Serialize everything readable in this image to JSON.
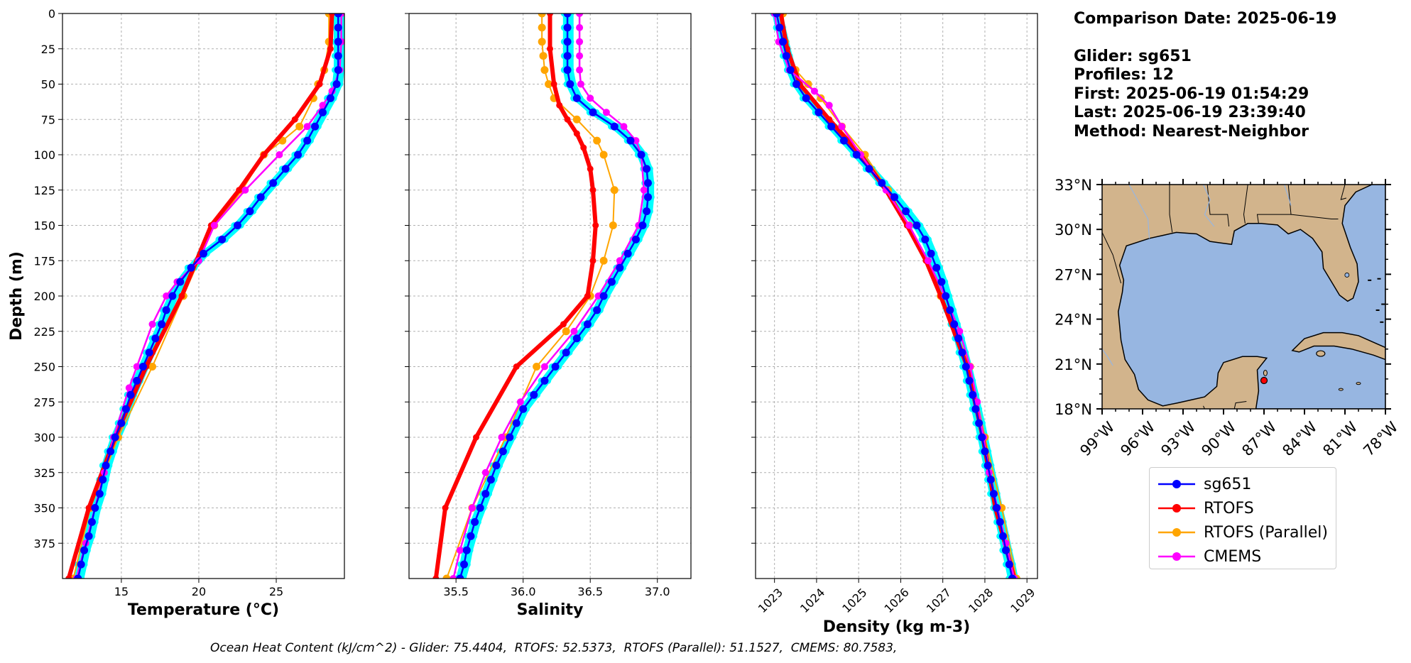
{
  "info": {
    "comparison_date": "Comparison Date: 2025-06-19",
    "glider": "Glider: sg651",
    "profiles": "Profiles: 12",
    "first": "First: 2025-06-19 01:54:29",
    "last": "Last: 2025-06-19 23:39:40",
    "method": "Method: Nearest-Neighbor"
  },
  "footer": "Ocean Heat Content (kJ/cm^2) - Glider: 75.4404,  RTOFS: 52.5373,  RTOFS (Parallel): 51.1527,  CMEMS: 80.7583,",
  "legend": [
    {
      "name": "sg651",
      "color": "#0000ff"
    },
    {
      "name": "RTOFS",
      "color": "#ff0000"
    },
    {
      "name": "RTOFS (Parallel)",
      "color": "#ffa500"
    },
    {
      "name": "CMEMS",
      "color": "#ff00ff"
    }
  ],
  "colors": {
    "glider_band": "#00ffff",
    "ocean": "#97b6e1",
    "land": "#d2b48c",
    "grid": "#b0b0b0"
  },
  "chart_data": [
    {
      "type": "line",
      "xlabel": "Temperature (°C)",
      "ylabel": "Depth (m)",
      "xlim": [
        11.2,
        29.4
      ],
      "ylim": [
        400,
        0
      ],
      "xticks": [
        15,
        20,
        25
      ],
      "yticks": [
        0,
        25,
        50,
        75,
        100,
        125,
        150,
        175,
        200,
        225,
        250,
        275,
        300,
        325,
        350,
        375
      ],
      "grid": true,
      "series": [
        {
          "name": "sg651",
          "depth": [
            0,
            10,
            20,
            30,
            40,
            50,
            60,
            70,
            80,
            90,
            100,
            110,
            120,
            130,
            140,
            150,
            160,
            170,
            180,
            190,
            200,
            210,
            220,
            230,
            240,
            250,
            260,
            270,
            280,
            290,
            300,
            310,
            320,
            330,
            340,
            350,
            360,
            370,
            380,
            390,
            400
          ],
          "values": [
            29.0,
            29.0,
            29.0,
            29.0,
            29.0,
            28.9,
            28.5,
            28.0,
            27.5,
            27.0,
            26.4,
            25.6,
            24.8,
            24.0,
            23.3,
            22.5,
            21.5,
            20.3,
            19.5,
            18.8,
            18.3,
            17.9,
            17.6,
            17.2,
            16.8,
            16.4,
            16.0,
            15.6,
            15.3,
            15.0,
            14.6,
            14.3,
            14.0,
            13.8,
            13.6,
            13.3,
            13.1,
            12.9,
            12.6,
            12.4,
            12.2
          ]
        },
        {
          "name": "RTOFS",
          "depth": [
            0,
            25,
            50,
            75,
            100,
            125,
            150,
            200,
            250,
            300,
            350,
            400
          ],
          "values": [
            28.6,
            28.5,
            27.8,
            26.2,
            24.2,
            22.6,
            20.8,
            18.9,
            16.6,
            14.6,
            12.9,
            11.6
          ]
        },
        {
          "name": "RTOFS (Parallel)",
          "depth": [
            0,
            20,
            40,
            50,
            60,
            80,
            90,
            100,
            125,
            150,
            200,
            250,
            300,
            350,
            400
          ],
          "values": [
            28.4,
            28.4,
            28.1,
            27.7,
            27.4,
            26.5,
            25.4,
            24.2,
            22.8,
            21.0,
            19.0,
            17.0,
            14.8,
            13.0,
            11.9
          ]
        },
        {
          "name": "CMEMS",
          "depth": [
            0,
            20,
            40,
            55,
            65,
            80,
            100,
            125,
            150,
            175,
            190,
            200,
            220,
            250,
            265,
            300,
            325,
            350,
            375,
            400
          ],
          "values": [
            29.2,
            29.2,
            29.1,
            28.6,
            28.0,
            27.0,
            25.2,
            23.0,
            21.0,
            20.0,
            18.6,
            17.9,
            17.0,
            16.0,
            15.5,
            14.5,
            13.9,
            13.3,
            12.7,
            12.1
          ]
        }
      ]
    },
    {
      "type": "line",
      "xlabel": "Salinity",
      "xlim": [
        35.15,
        37.25
      ],
      "ylim": [
        400,
        0
      ],
      "xticks": [
        35.5,
        36.0,
        36.5,
        37.0
      ],
      "grid": true,
      "series": [
        {
          "name": "sg651",
          "depth": [
            0,
            10,
            20,
            30,
            40,
            50,
            60,
            70,
            80,
            90,
            100,
            110,
            120,
            130,
            140,
            150,
            160,
            170,
            180,
            190,
            200,
            210,
            220,
            230,
            240,
            250,
            260,
            270,
            280,
            290,
            300,
            310,
            320,
            330,
            340,
            350,
            360,
            370,
            380,
            390,
            400
          ],
          "values": [
            36.33,
            36.33,
            36.33,
            36.33,
            36.33,
            36.35,
            36.4,
            36.52,
            36.68,
            36.8,
            36.88,
            36.92,
            36.93,
            36.93,
            36.92,
            36.89,
            36.84,
            36.78,
            36.72,
            36.66,
            36.6,
            36.55,
            36.48,
            36.4,
            36.32,
            36.24,
            36.16,
            36.08,
            36.0,
            35.95,
            35.9,
            35.85,
            35.8,
            35.76,
            35.72,
            35.68,
            35.64,
            35.61,
            35.58,
            35.56,
            35.53
          ]
        },
        {
          "name": "RTOFS",
          "depth": [
            0,
            25,
            50,
            65,
            75,
            85,
            95,
            110,
            125,
            150,
            175,
            200,
            220,
            250,
            300,
            350,
            400
          ],
          "values": [
            36.2,
            36.2,
            36.23,
            36.27,
            36.33,
            36.4,
            36.45,
            36.5,
            36.52,
            36.54,
            36.52,
            36.48,
            36.3,
            35.95,
            35.65,
            35.42,
            35.35
          ]
        },
        {
          "name": "RTOFS (Parallel)",
          "depth": [
            0,
            10,
            20,
            30,
            40,
            50,
            60,
            75,
            90,
            100,
            125,
            150,
            175,
            200,
            225,
            250,
            300,
            350,
            400
          ],
          "values": [
            36.14,
            36.14,
            36.14,
            36.15,
            36.16,
            36.19,
            36.23,
            36.4,
            36.55,
            36.6,
            36.68,
            36.67,
            36.6,
            36.5,
            36.32,
            36.1,
            35.87,
            35.62,
            35.43
          ]
        },
        {
          "name": "CMEMS",
          "depth": [
            0,
            10,
            20,
            30,
            40,
            50,
            60,
            70,
            80,
            90,
            100,
            125,
            150,
            175,
            200,
            225,
            250,
            275,
            300,
            325,
            350,
            380,
            400
          ],
          "values": [
            36.42,
            36.42,
            36.42,
            36.42,
            36.42,
            36.43,
            36.5,
            36.62,
            36.75,
            36.84,
            36.88,
            36.9,
            36.86,
            36.72,
            36.56,
            36.38,
            36.16,
            35.98,
            35.84,
            35.72,
            35.62,
            35.53,
            35.48
          ]
        }
      ]
    },
    {
      "type": "line",
      "xlabel": "Density (kg m-3)",
      "xlim": [
        1022.55,
        1029.25
      ],
      "ylim": [
        400,
        0
      ],
      "xticks": [
        1023,
        1024,
        1025,
        1026,
        1027,
        1028,
        1029
      ],
      "grid": true,
      "series": [
        {
          "name": "sg651",
          "depth": [
            0,
            10,
            20,
            30,
            40,
            50,
            60,
            70,
            80,
            90,
            100,
            110,
            120,
            130,
            140,
            150,
            160,
            170,
            180,
            190,
            200,
            210,
            220,
            230,
            240,
            250,
            260,
            270,
            280,
            290,
            300,
            310,
            320,
            330,
            340,
            350,
            360,
            370,
            380,
            390,
            400
          ],
          "values": [
            1023.05,
            1023.12,
            1023.2,
            1023.28,
            1023.38,
            1023.52,
            1023.75,
            1024.05,
            1024.35,
            1024.65,
            1024.95,
            1025.25,
            1025.55,
            1025.85,
            1026.12,
            1026.38,
            1026.58,
            1026.72,
            1026.85,
            1026.97,
            1027.07,
            1027.17,
            1027.27,
            1027.37,
            1027.46,
            1027.55,
            1027.63,
            1027.71,
            1027.78,
            1027.86,
            1027.93,
            1028.0,
            1028.07,
            1028.14,
            1028.21,
            1028.28,
            1028.36,
            1028.43,
            1028.5,
            1028.58,
            1028.65
          ]
        },
        {
          "name": "RTOFS",
          "depth": [
            0,
            25,
            50,
            75,
            100,
            125,
            150,
            175,
            200,
            250,
            300,
            350,
            400
          ],
          "values": [
            1023.15,
            1023.3,
            1023.6,
            1024.3,
            1025.05,
            1025.65,
            1026.15,
            1026.6,
            1026.95,
            1027.58,
            1027.95,
            1028.25,
            1028.7
          ]
        },
        {
          "name": "RTOFS (Parallel)",
          "depth": [
            0,
            20,
            40,
            50,
            60,
            80,
            100,
            125,
            150,
            200,
            250,
            300,
            350,
            400
          ],
          "values": [
            1023.2,
            1023.25,
            1023.5,
            1023.8,
            1024.1,
            1024.6,
            1025.15,
            1025.7,
            1026.2,
            1026.95,
            1027.65,
            1028.0,
            1028.4,
            1028.75
          ]
        },
        {
          "name": "CMEMS",
          "depth": [
            0,
            20,
            40,
            55,
            65,
            80,
            100,
            125,
            150,
            175,
            200,
            225,
            250,
            275,
            300,
            325,
            350,
            375,
            400
          ],
          "values": [
            1023.0,
            1023.1,
            1023.35,
            1023.95,
            1024.3,
            1024.6,
            1025.05,
            1025.65,
            1026.2,
            1026.65,
            1027.05,
            1027.4,
            1027.65,
            1027.82,
            1027.97,
            1028.1,
            1028.3,
            1028.5,
            1028.7
          ]
        }
      ]
    }
  ],
  "map": {
    "lat_ticks": [
      "33°N",
      "30°N",
      "27°N",
      "24°N",
      "21°N",
      "18°N"
    ],
    "lon_ticks": [
      "99°W",
      "96°W",
      "93°W",
      "90°W",
      "87°W",
      "84°W",
      "81°W",
      "78°W"
    ],
    "lat_values": [
      33,
      30,
      27,
      24,
      21,
      18
    ],
    "lon_values": [
      -99,
      -96,
      -93,
      -90,
      -87,
      -84,
      -81,
      -78
    ],
    "extent": {
      "lon_min": -99,
      "lon_max": -78,
      "lat_min": 18,
      "lat_max": 33
    },
    "glider_position": {
      "lon": -87.0,
      "lat": 19.9
    }
  }
}
